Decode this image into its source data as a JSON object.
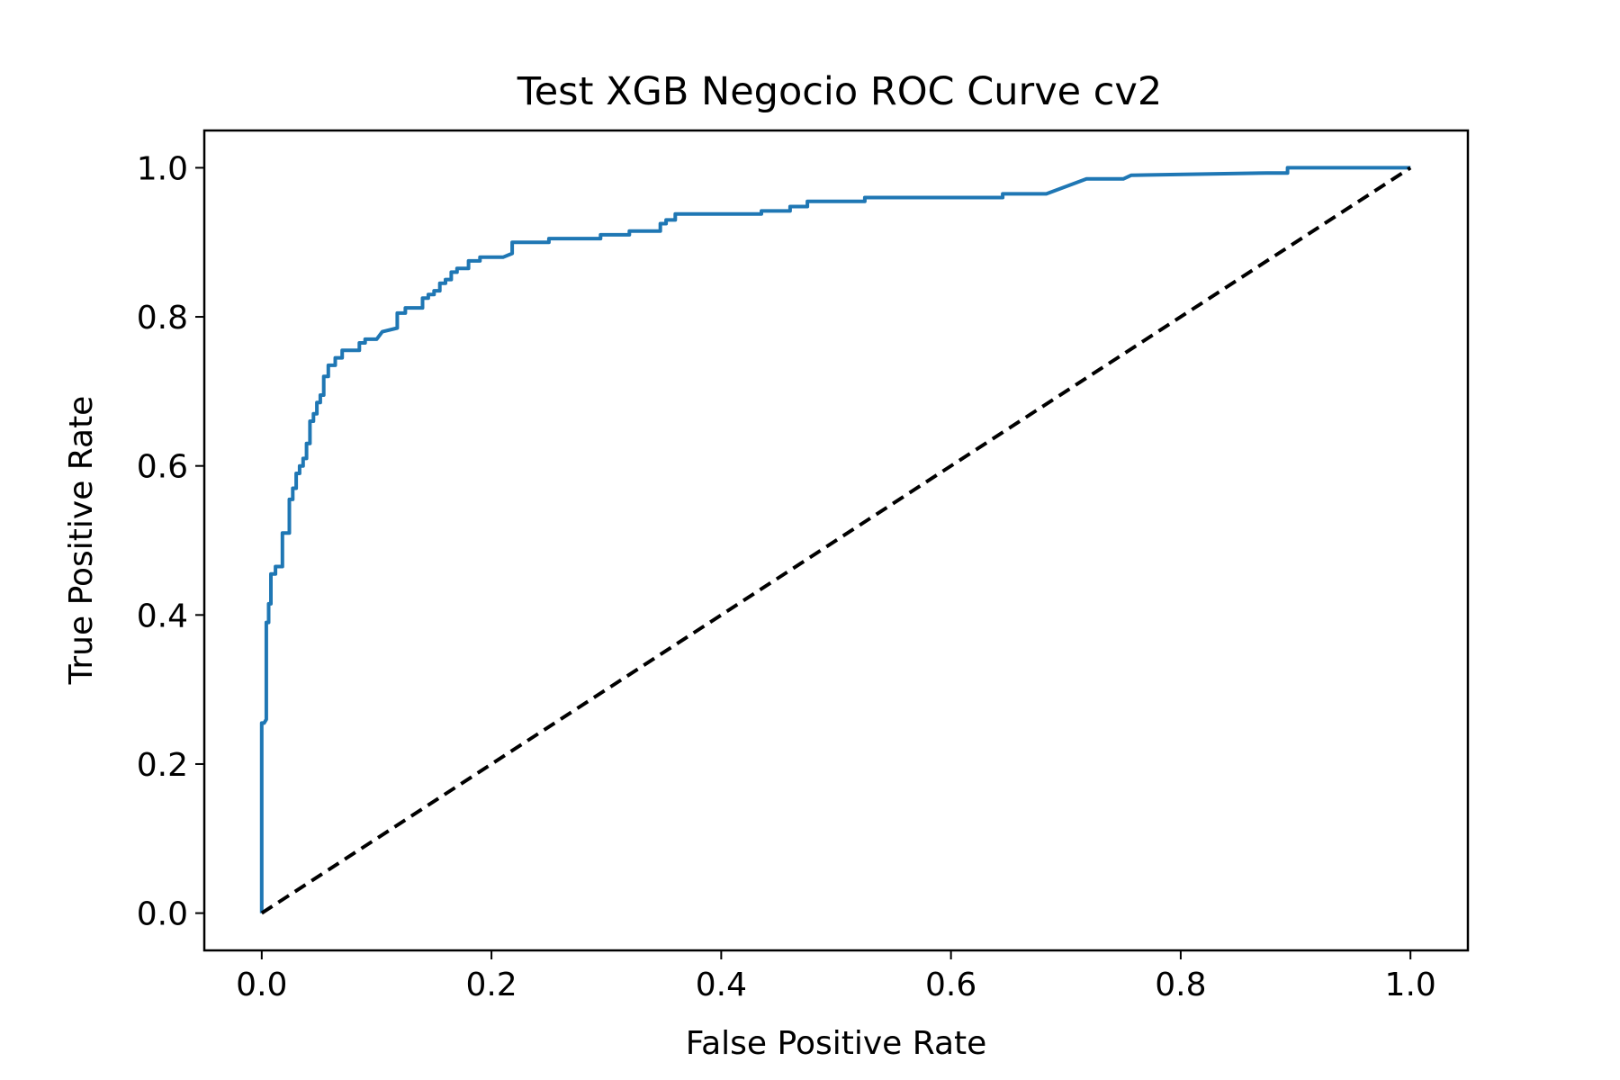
{
  "chart_data": {
    "type": "line",
    "title": "Test XGB Negocio ROC Curve cv2",
    "xlabel": "False Positive Rate",
    "ylabel": "True Positive Rate",
    "xlim": [
      -0.05,
      1.05
    ],
    "ylim": [
      -0.05,
      1.05
    ],
    "xticks": [
      0.0,
      0.2,
      0.4,
      0.6,
      0.8,
      1.0
    ],
    "xtick_labels": [
      "0.0",
      "0.2",
      "0.4",
      "0.6",
      "0.8",
      "1.0"
    ],
    "yticks": [
      0.0,
      0.2,
      0.4,
      0.6,
      0.8,
      1.0
    ],
    "ytick_labels": [
      "0.0",
      "0.2",
      "0.4",
      "0.6",
      "0.8",
      "1.0"
    ],
    "grid": false,
    "legend": "none",
    "series": [
      {
        "color": "#1f77b4",
        "style": "solid",
        "x": [
          0.0,
          0.0,
          0.002,
          0.004,
          0.004,
          0.006,
          0.006,
          0.008,
          0.008,
          0.012,
          0.012,
          0.018,
          0.018,
          0.024,
          0.024,
          0.027,
          0.027,
          0.03,
          0.03,
          0.033,
          0.033,
          0.036,
          0.036,
          0.039,
          0.039,
          0.042,
          0.042,
          0.045,
          0.045,
          0.048,
          0.048,
          0.051,
          0.051,
          0.054,
          0.054,
          0.058,
          0.058,
          0.064,
          0.064,
          0.07,
          0.07,
          0.085,
          0.085,
          0.09,
          0.09,
          0.1,
          0.105,
          0.105,
          0.118,
          0.118,
          0.125,
          0.125,
          0.14,
          0.14,
          0.145,
          0.145,
          0.15,
          0.15,
          0.155,
          0.155,
          0.16,
          0.16,
          0.165,
          0.165,
          0.17,
          0.17,
          0.18,
          0.18,
          0.19,
          0.19,
          0.21,
          0.218,
          0.218,
          0.25,
          0.25,
          0.295,
          0.295,
          0.32,
          0.32,
          0.347,
          0.347,
          0.352,
          0.352,
          0.36,
          0.36,
          0.435,
          0.435,
          0.46,
          0.46,
          0.475,
          0.475,
          0.525,
          0.525,
          0.645,
          0.645,
          0.683,
          0.718,
          0.75,
          0.757,
          0.757,
          0.875,
          0.893,
          0.893,
          1.0
        ],
        "y": [
          0.0,
          0.255,
          0.255,
          0.26,
          0.39,
          0.39,
          0.415,
          0.415,
          0.455,
          0.455,
          0.465,
          0.465,
          0.51,
          0.51,
          0.555,
          0.555,
          0.57,
          0.57,
          0.59,
          0.59,
          0.6,
          0.6,
          0.61,
          0.61,
          0.63,
          0.63,
          0.66,
          0.66,
          0.67,
          0.67,
          0.685,
          0.685,
          0.695,
          0.695,
          0.72,
          0.72,
          0.735,
          0.735,
          0.745,
          0.745,
          0.755,
          0.755,
          0.765,
          0.765,
          0.77,
          0.77,
          0.78,
          0.78,
          0.785,
          0.805,
          0.805,
          0.812,
          0.812,
          0.825,
          0.825,
          0.83,
          0.83,
          0.835,
          0.835,
          0.845,
          0.845,
          0.85,
          0.85,
          0.86,
          0.86,
          0.865,
          0.865,
          0.875,
          0.875,
          0.88,
          0.88,
          0.885,
          0.9,
          0.9,
          0.905,
          0.905,
          0.91,
          0.91,
          0.915,
          0.915,
          0.925,
          0.925,
          0.93,
          0.93,
          0.938,
          0.938,
          0.942,
          0.942,
          0.948,
          0.948,
          0.955,
          0.955,
          0.96,
          0.96,
          0.965,
          0.965,
          0.985,
          0.985,
          0.99,
          0.99,
          0.993,
          0.993,
          1.0,
          1.0
        ]
      },
      {
        "color": "#000000",
        "style": "dashed",
        "x": [
          0.0,
          1.0
        ],
        "y": [
          0.0,
          1.0
        ]
      }
    ]
  }
}
